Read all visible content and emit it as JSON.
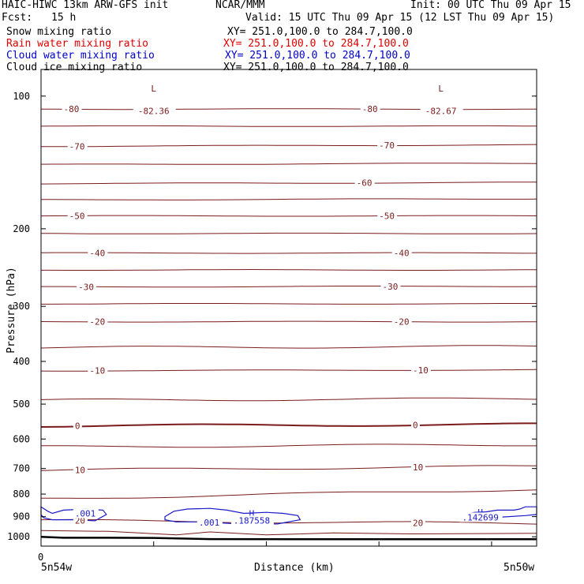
{
  "header": {
    "model": "HAIC-HIWC 13km ARW-GFS init",
    "org": "NCAR/MMM",
    "init": "Init: 00 UTC Thu 09 Apr 15",
    "fcst_label": "Fcst:",
    "fcst_value": "15 h",
    "valid": "Valid: 15 UTC Thu 09 Apr 15 (12 LST Thu 09 Apr 15)"
  },
  "fields": [
    {
      "name": "Snow mixing ratio",
      "xy": "XY= 251.0,100.0 to 284.7,100.0",
      "color": "#000000"
    },
    {
      "name": "Rain water mixing ratio",
      "xy": "XY= 251.0,100.0 to 284.7,100.0",
      "color": "#e00000"
    },
    {
      "name": "Cloud water mixing ratio",
      "xy": "XY= 251.0,100.0 to 284.7,100.0",
      "color": "#0000c8"
    },
    {
      "name": "Cloud ice mixing ratio",
      "xy": "XY= 251.0,100.0 to 284.7,100.0",
      "color": "#000000"
    }
  ],
  "colors": {
    "temperature": "#7a1c1c",
    "cloud_water": "#1a1ac8",
    "ground": "#000000"
  },
  "chart_data": {
    "type": "line",
    "xlabel": "Distance (km)",
    "ylabel": "Pressure (hPa)",
    "y_scale": "log",
    "ylim": [
      1050,
      87
    ],
    "xlim": [
      0,
      440
    ],
    "y_ticks": [
      100,
      200,
      300,
      400,
      500,
      600,
      700,
      800,
      900,
      1000
    ],
    "x_ticks": [
      0
    ],
    "x_tick_minor": [
      0,
      100,
      200,
      300,
      400
    ],
    "x_endpoints": [
      "5n54w",
      "5n50w"
    ],
    "x_origin_label": "0",
    "temperature_contours": [
      {
        "value": -80,
        "x": [
          0,
          440
        ],
        "p": [
          107,
          107
        ],
        "labels": [
          {
            "text": "-80",
            "x": 20
          },
          {
            "text": "-80",
            "x": 285
          }
        ]
      },
      {
        "value": -70,
        "x": [
          0,
          440
        ],
        "p": [
          130,
          129
        ],
        "labels": [
          {
            "text": "-70",
            "x": 25
          },
          {
            "text": "-70",
            "x": 300
          }
        ]
      },
      {
        "value": -60,
        "x": [
          0,
          440
        ],
        "p": [
          158,
          157
        ],
        "labels": [
          {
            "text": "-60",
            "x": 280
          }
        ]
      },
      {
        "value": -50,
        "x": [
          0,
          440
        ],
        "p": [
          187,
          187
        ],
        "labels": [
          {
            "text": "-50",
            "x": 25
          },
          {
            "text": "-50",
            "x": 300
          }
        ]
      },
      {
        "value": -40,
        "x": [
          0,
          440
        ],
        "p": [
          227,
          227
        ],
        "labels": [
          {
            "text": "-40",
            "x": 43
          },
          {
            "text": "-40",
            "x": 313
          }
        ]
      },
      {
        "value": -30,
        "x": [
          0,
          440
        ],
        "p": [
          271,
          270
        ],
        "labels": [
          {
            "text": "-30",
            "x": 33
          },
          {
            "text": "-30",
            "x": 303
          }
        ]
      },
      {
        "value": -20,
        "x": [
          0,
          440
        ],
        "p": [
          325,
          325
        ],
        "labels": [
          {
            "text": "-20",
            "x": 43
          },
          {
            "text": "-20",
            "x": 313
          }
        ]
      },
      {
        "value": -10,
        "x": [
          0,
          440
        ],
        "p": [
          420,
          418
        ],
        "labels": [
          {
            "text": "-10",
            "x": 43
          },
          {
            "text": "-10",
            "x": 330
          }
        ]
      },
      {
        "value": 0,
        "x": [
          0,
          440
        ],
        "p": [
          560,
          556
        ],
        "labels": [
          {
            "text": "0",
            "x": 30
          },
          {
            "text": "0",
            "x": 330
          }
        ],
        "bold": true
      },
      {
        "value": 10,
        "x": [
          0,
          440
        ],
        "p": [
          706,
          692
        ],
        "labels": [
          {
            "text": "10",
            "x": 30
          },
          {
            "text": "10",
            "x": 330
          }
        ]
      },
      {
        "value": 20,
        "x": [
          0,
          440
        ],
        "p": [
          918,
          933
        ],
        "labels": [
          {
            "text": "20",
            "x": 30
          },
          {
            "text": "20",
            "x": 330
          }
        ]
      }
    ],
    "cloud_water_contours": [
      {
        "value": ".001",
        "labels": [
          {
            "text": ".001",
            "x": 30
          },
          {
            "text": ".001",
            "x": 140
          }
        ]
      }
    ],
    "extrema": [
      {
        "type": "L",
        "value": "-82.36",
        "x": 100,
        "color": "#7a1c1c"
      },
      {
        "type": "L",
        "value": "-82.67",
        "x": 355,
        "color": "#7a1c1c"
      },
      {
        "type": "H",
        "value": ".187558",
        "x": 187,
        "color": "#1a1ac8"
      },
      {
        "type": "H",
        "value": ".142699",
        "x": 390,
        "color": "#1a1ac8"
      }
    ]
  }
}
